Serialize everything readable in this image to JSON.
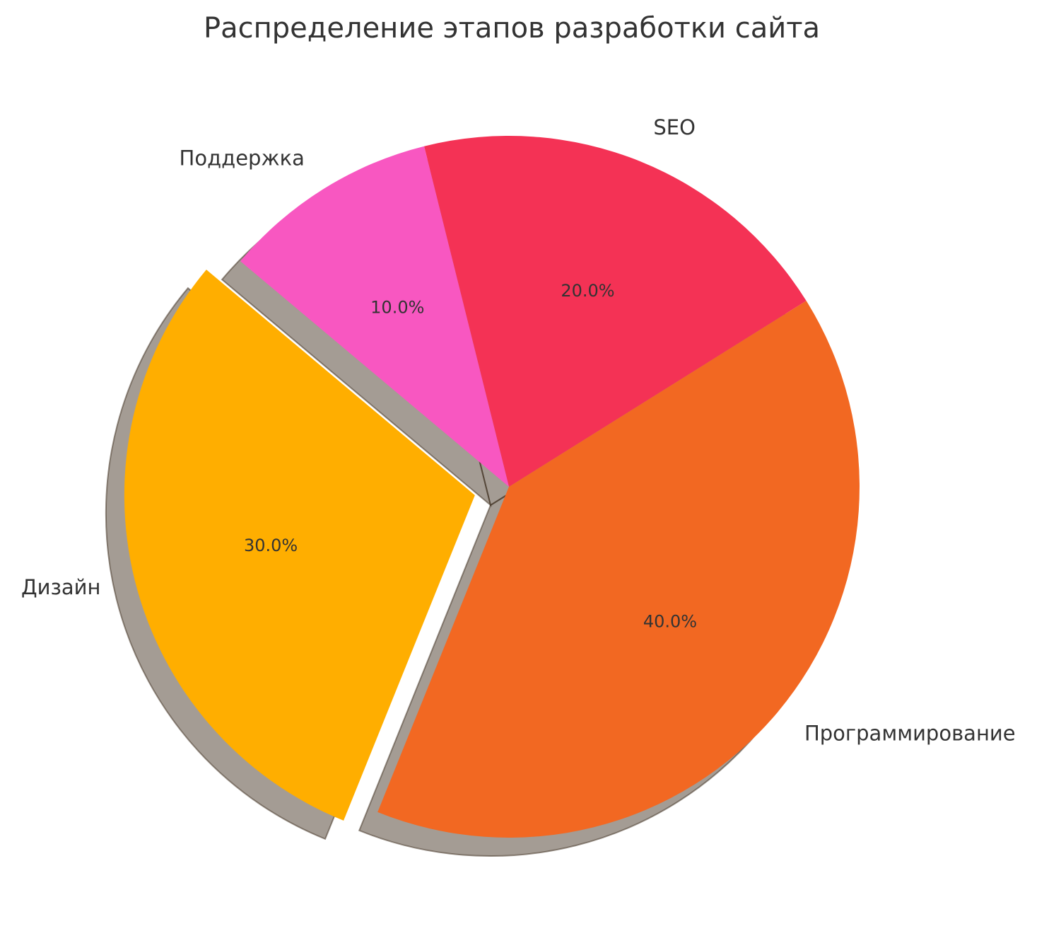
{
  "chart_data": {
    "type": "pie",
    "title": "Распределение этапов разработки сайта",
    "categories": [
      "Дизайн",
      "Программирование",
      "SEO",
      "Поддержка"
    ],
    "values": [
      30,
      40,
      20,
      10
    ],
    "value_labels": [
      "30.0%",
      "40.0%",
      "20.0%",
      "10.0%"
    ],
    "colors": [
      "#ffae00",
      "#f26822",
      "#f43255",
      "#f857c1"
    ],
    "explode": [
      0.1,
      0,
      0,
      0
    ],
    "shadow": true
  }
}
